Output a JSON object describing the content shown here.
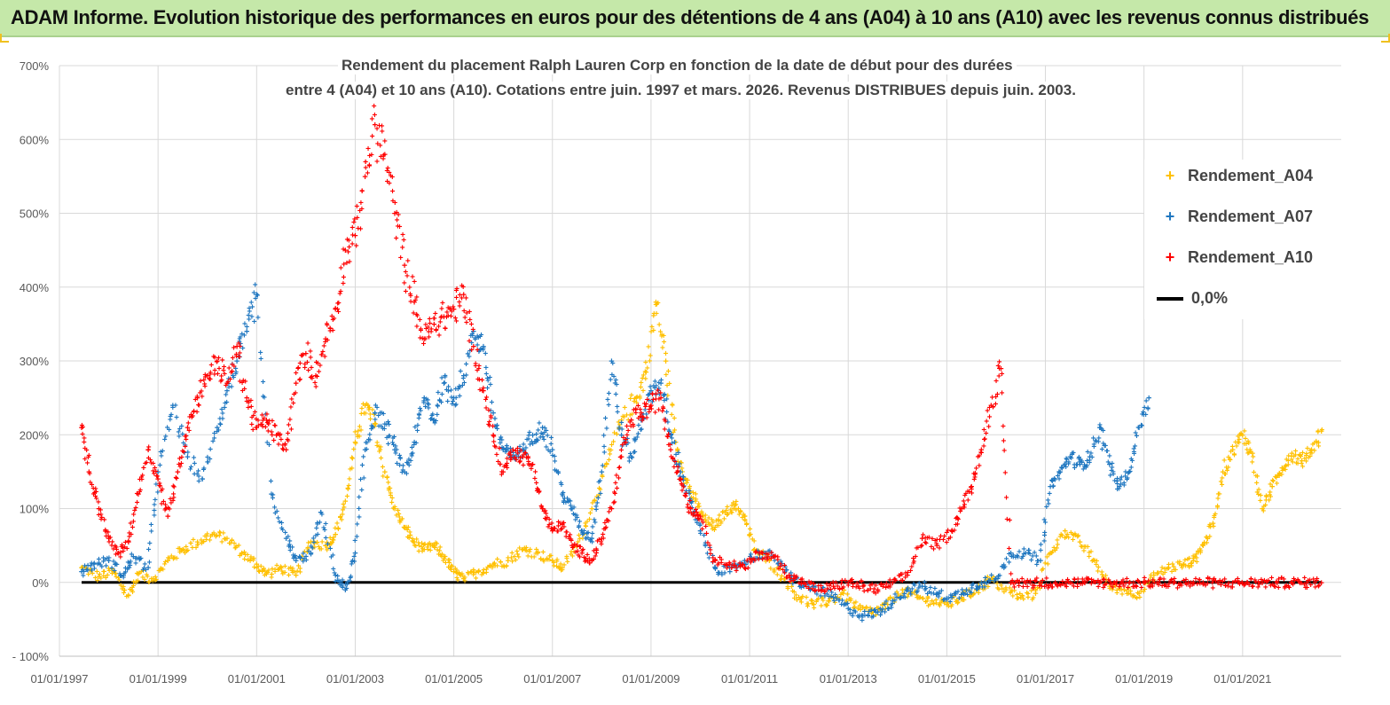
{
  "header": {
    "title": "ADAM Informe. Evolution historique des performances en euros pour des détentions de 4 ans (A04) à 10 ans (A10) avec les revenus connus distribués"
  },
  "chart_data": {
    "type": "scatter",
    "title_line1": "Rendement du placement Ralph Lauren Corp en fonction de la date de début pour des durées",
    "title_line2": "entre 4 (A04) et 10 ans (A10).  Cotations entre juin. 1997 et mars. 2026. Revenus DISTRIBUES depuis juin. 2003.",
    "xlabel": "",
    "ylabel": "",
    "ylim": [
      -100,
      700
    ],
    "xlim": [
      1997.0,
      2023.0
    ],
    "y_ticks": [
      -100,
      0,
      100,
      200,
      300,
      400,
      500,
      600,
      700
    ],
    "y_tick_labels": [
      "- 100%",
      "0%",
      "100%",
      "200%",
      "300%",
      "400%",
      "500%",
      "600%",
      "700%"
    ],
    "x_ticks": [
      1997,
      1999,
      2001,
      2003,
      2005,
      2007,
      2009,
      2011,
      2013,
      2015,
      2017,
      2019,
      2021
    ],
    "x_tick_labels": [
      "01/01/1997",
      "01/01/1999",
      "01/01/2001",
      "01/01/2003",
      "01/01/2005",
      "01/01/2007",
      "01/01/2009",
      "01/01/2011",
      "01/01/2013",
      "01/01/2015",
      "01/01/2017",
      "01/01/2019",
      "01/01/2021"
    ],
    "grid": true,
    "legend_position": "top-right",
    "series": [
      {
        "name": "Rendement_A04",
        "color": "#ffc000",
        "x": [
          1997.45,
          1997.8,
          1998.1,
          1998.4,
          1998.6,
          1998.9,
          1999.2,
          1999.5,
          1999.8,
          2000.1,
          2000.4,
          2000.7,
          2001.0,
          2001.2,
          2001.5,
          2001.8,
          2002.1,
          2002.4,
          2002.6,
          2002.8,
          2003.0,
          2003.2,
          2003.4,
          2003.6,
          2003.8,
          2004.0,
          2004.2,
          2004.4,
          2004.6,
          2004.8,
          2005.0,
          2005.2,
          2005.5,
          2005.8,
          2006.1,
          2006.4,
          2006.7,
          2007.0,
          2007.2,
          2007.5,
          2007.8,
          2008.1,
          2008.4,
          2008.7,
          2008.9,
          2009.1,
          2009.3,
          2009.5,
          2009.7,
          2009.9,
          2010.1,
          2010.3,
          2010.5,
          2010.7,
          2010.9,
          2011.1,
          2011.4,
          2011.7,
          2012.0,
          2012.3,
          2012.6,
          2012.9,
          2013.2,
          2013.5,
          2013.8,
          2014.1,
          2014.4,
          2014.7,
          2015.0,
          2015.3,
          2015.6,
          2015.9,
          2016.2,
          2016.5,
          2016.8,
          2017.1,
          2017.4,
          2017.7,
          2018.0,
          2018.3,
          2018.6,
          2018.9,
          2019.2,
          2019.5,
          2019.8,
          2020.0,
          2020.2,
          2020.4,
          2020.6,
          2020.8,
          2021.0,
          2021.2,
          2021.4,
          2021.6,
          2021.8,
          2022.0,
          2022.2,
          2022.4,
          2022.6
        ],
        "y": [
          20,
          8,
          15,
          -18,
          12,
          5,
          30,
          45,
          55,
          65,
          60,
          40,
          25,
          12,
          20,
          10,
          55,
          50,
          65,
          110,
          190,
          240,
          215,
          150,
          100,
          75,
          55,
          45,
          50,
          35,
          15,
          5,
          15,
          25,
          30,
          45,
          40,
          30,
          20,
          50,
          100,
          160,
          220,
          250,
          285,
          380,
          300,
          190,
          140,
          110,
          85,
          75,
          95,
          105,
          90,
          45,
          30,
          5,
          -20,
          -30,
          -25,
          -15,
          -35,
          -40,
          -30,
          -10,
          -20,
          -25,
          -30,
          -20,
          -10,
          5,
          -10,
          -20,
          -15,
          40,
          70,
          55,
          30,
          -5,
          -10,
          -15,
          10,
          20,
          25,
          30,
          50,
          80,
          150,
          180,
          200,
          175,
          100,
          130,
          155,
          175,
          165,
          180,
          205
        ]
      },
      {
        "name": "Rendement_A07",
        "color": "#1f77c0",
        "x": [
          1997.45,
          1997.7,
          1998.0,
          1998.3,
          1998.5,
          1998.8,
          1999.0,
          1999.3,
          1999.6,
          1999.9,
          2000.2,
          2000.4,
          2000.6,
          2000.8,
          2001.0,
          2001.3,
          2001.6,
          2001.8,
          2002.1,
          2002.3,
          2002.6,
          2002.8,
          2003.0,
          2003.2,
          2003.4,
          2003.6,
          2003.8,
          2004.0,
          2004.2,
          2004.4,
          2004.6,
          2004.8,
          2005.0,
          2005.2,
          2005.4,
          2005.6,
          2005.8,
          2006.0,
          2006.2,
          2006.4,
          2006.6,
          2006.8,
          2007.0,
          2007.2,
          2007.4,
          2007.6,
          2007.8,
          2008.0,
          2008.2,
          2008.4,
          2008.6,
          2008.8,
          2009.0,
          2009.2,
          2009.4,
          2009.6,
          2009.8,
          2010.0,
          2010.3,
          2010.6,
          2010.9,
          2011.2,
          2011.5,
          2011.8,
          2012.1,
          2012.4,
          2012.7,
          2013.0,
          2013.3,
          2013.6,
          2013.9,
          2014.2,
          2014.5,
          2014.8,
          2015.1,
          2015.4,
          2015.7,
          2016.0,
          2016.3,
          2016.6,
          2016.9,
          2017.1,
          2017.3,
          2017.5,
          2017.7,
          2017.9,
          2018.1,
          2018.3,
          2018.5,
          2018.7,
          2018.9,
          2019.1
        ],
        "y": [
          15,
          25,
          30,
          10,
          35,
          20,
          150,
          240,
          170,
          140,
          210,
          260,
          300,
          340,
          390,
          120,
          60,
          30,
          40,
          95,
          10,
          -10,
          40,
          180,
          230,
          215,
          180,
          150,
          190,
          250,
          220,
          270,
          250,
          280,
          340,
          320,
          230,
          180,
          170,
          180,
          200,
          210,
          180,
          120,
          100,
          70,
          60,
          150,
          300,
          200,
          170,
          220,
          260,
          270,
          200,
          150,
          110,
          70,
          20,
          15,
          30,
          40,
          35,
          10,
          -5,
          -10,
          -20,
          -35,
          -45,
          -40,
          -25,
          -10,
          -5,
          -15,
          -20,
          -10,
          0,
          5,
          40,
          40,
          30,
          130,
          150,
          170,
          160,
          170,
          210,
          160,
          130,
          150,
          210,
          250
        ]
      },
      {
        "name": "Rendement_A10",
        "color": "#ff0000",
        "x": [
          1997.45,
          1997.6,
          1997.8,
          1998.0,
          1998.2,
          1998.4,
          1998.6,
          1998.8,
          1999.0,
          1999.2,
          1999.4,
          1999.6,
          1999.8,
          2000.0,
          2000.2,
          2000.4,
          2000.6,
          2000.8,
          2001.0,
          2001.2,
          2001.4,
          2001.6,
          2001.8,
          2002.0,
          2002.2,
          2002.4,
          2002.6,
          2002.8,
          2003.0,
          2003.2,
          2003.4,
          2003.6,
          2003.8,
          2004.0,
          2004.2,
          2004.4,
          2004.6,
          2004.8,
          2005.0,
          2005.2,
          2005.4,
          2005.6,
          2005.8,
          2006.0,
          2006.2,
          2006.4,
          2006.6,
          2006.8,
          2007.0,
          2007.2,
          2007.4,
          2007.6,
          2007.8,
          2008.0,
          2008.2,
          2008.4,
          2008.6,
          2008.8,
          2009.0,
          2009.2,
          2009.4,
          2009.6,
          2009.8,
          2010.0,
          2010.3,
          2010.6,
          2010.9,
          2011.2,
          2011.5,
          2011.8,
          2012.1,
          2012.4,
          2012.7,
          2013.0,
          2013.3,
          2013.6,
          2013.9,
          2014.2,
          2014.5,
          2014.8,
          2015.1,
          2015.3,
          2015.5,
          2015.7,
          2015.9,
          2016.1,
          2016.3,
          2016.6,
          2016.9,
          2017.2,
          2017.5,
          2017.8,
          2018.1,
          2018.4,
          2018.7,
          2019.0,
          2019.3,
          2019.6,
          2019.9,
          2020.2,
          2020.5,
          2020.8,
          2021.1,
          2021.4,
          2021.7,
          2022.0,
          2022.3,
          2022.6
        ],
        "y": [
          210,
          150,
          100,
          60,
          40,
          55,
          120,
          180,
          140,
          90,
          150,
          210,
          250,
          280,
          300,
          270,
          320,
          250,
          210,
          220,
          200,
          180,
          270,
          310,
          280,
          330,
          370,
          450,
          470,
          550,
          620,
          580,
          500,
          430,
          380,
          330,
          350,
          360,
          370,
          390,
          320,
          260,
          200,
          150,
          180,
          170,
          160,
          100,
          70,
          80,
          50,
          40,
          30,
          60,
          100,
          170,
          220,
          230,
          240,
          250,
          180,
          140,
          100,
          90,
          30,
          25,
          20,
          40,
          35,
          10,
          0,
          -10,
          -5,
          0,
          -5,
          -10,
          0,
          10,
          60,
          50,
          70,
          100,
          130,
          180,
          240,
          290,
          0,
          0,
          0,
          0,
          0,
          0,
          0,
          0,
          0,
          0,
          0,
          0,
          0,
          0,
          0,
          0,
          0,
          0,
          0,
          0,
          0,
          0
        ]
      },
      {
        "name": "0,0%",
        "color": "#000000",
        "x": [
          1997.45,
          2022.6
        ],
        "y": [
          0,
          0
        ]
      }
    ]
  }
}
